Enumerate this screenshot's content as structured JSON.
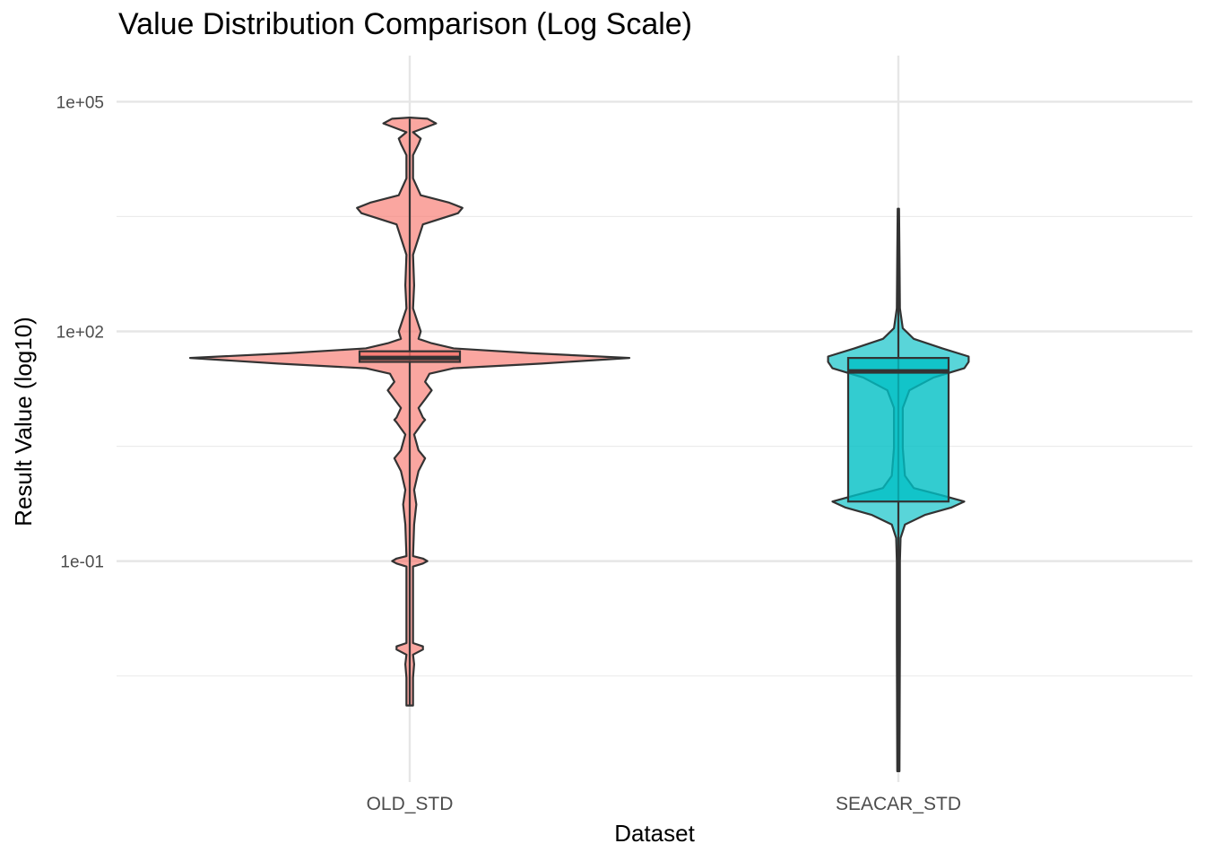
{
  "chart_data": {
    "type": "violin",
    "title": "Value Distribution Comparison (Log Scale)",
    "xlabel": "Dataset",
    "ylabel": "Result Value (log10)",
    "y_scale": "log10",
    "ylim": [
      0.00013,
      400000
    ],
    "y_ticks": [
      {
        "value": 0.1,
        "label": "1e-01"
      },
      {
        "value": 100,
        "label": "1e+02"
      },
      {
        "value": 100000,
        "label": "1e+05"
      }
    ],
    "y_minor_ticks": [
      0.0031623,
      3.1623,
      3162.3
    ],
    "grid": true,
    "legend": "none",
    "categories": [
      "OLD_STD",
      "SEACAR_STD"
    ],
    "series": [
      {
        "category": "OLD_STD",
        "color": "#F8766D",
        "min": 0.0013,
        "max": 60000,
        "box": {
          "q1": 40,
          "median": 45,
          "q3": 55
        },
        "violin_profile": [
          [
            0.0013,
            0.015
          ],
          [
            0.003,
            0.015
          ],
          [
            0.0045,
            0.02
          ],
          [
            0.006,
            0.015
          ],
          [
            0.007,
            0.06
          ],
          [
            0.0077,
            0.06
          ],
          [
            0.0085,
            0.015
          ],
          [
            0.085,
            0.015
          ],
          [
            0.093,
            0.06
          ],
          [
            0.1,
            0.08
          ],
          [
            0.108,
            0.06
          ],
          [
            0.116,
            0.015
          ],
          [
            0.3,
            0.02
          ],
          [
            0.55,
            0.03
          ],
          [
            0.85,
            0.02
          ],
          [
            1.5,
            0.04
          ],
          [
            2.2,
            0.07
          ],
          [
            2.8,
            0.04
          ],
          [
            4.5,
            0.02
          ],
          [
            6.5,
            0.06
          ],
          [
            7.0,
            0.07
          ],
          [
            7.5,
            0.06
          ],
          [
            10,
            0.04
          ],
          [
            13,
            0.07
          ],
          [
            17,
            0.1
          ],
          [
            22,
            0.07
          ],
          [
            28,
            0.09
          ],
          [
            33,
            0.2
          ],
          [
            38,
            0.6
          ],
          [
            45,
            1.0
          ],
          [
            52,
            0.55
          ],
          [
            60,
            0.2
          ],
          [
            70,
            0.1
          ],
          [
            80,
            0.04
          ],
          [
            100,
            0.05
          ],
          [
            200,
            0.015
          ],
          [
            400,
            0.02
          ],
          [
            1000,
            0.015
          ],
          [
            2500,
            0.06
          ],
          [
            3500,
            0.22
          ],
          [
            4100,
            0.24
          ],
          [
            4800,
            0.18
          ],
          [
            6000,
            0.05
          ],
          [
            10000,
            0.015
          ],
          [
            20000,
            0.015
          ],
          [
            28000,
            0.04
          ],
          [
            33000,
            0.05
          ],
          [
            40000,
            0.015
          ],
          [
            52000,
            0.12
          ],
          [
            60000,
            0.08
          ],
          [
            62000,
            0.001
          ]
        ]
      },
      {
        "category": "SEACAR_STD",
        "color": "#00BFC4",
        "min": 0.00018,
        "max": 4000,
        "box": {
          "q1": 0.6,
          "median": 30,
          "q3": 45
        },
        "violin_profile": [
          [
            0.00018,
            0.005
          ],
          [
            0.01,
            0.007
          ],
          [
            0.1,
            0.007
          ],
          [
            0.2,
            0.01
          ],
          [
            0.3,
            0.03
          ],
          [
            0.4,
            0.12
          ],
          [
            0.5,
            0.24
          ],
          [
            0.6,
            0.3
          ],
          [
            0.72,
            0.2
          ],
          [
            0.9,
            0.07
          ],
          [
            1.3,
            0.03
          ],
          [
            3,
            0.02
          ],
          [
            10,
            0.02
          ],
          [
            17,
            0.05
          ],
          [
            25,
            0.16
          ],
          [
            33,
            0.3
          ],
          [
            40,
            0.32
          ],
          [
            47,
            0.32
          ],
          [
            60,
            0.2
          ],
          [
            80,
            0.07
          ],
          [
            110,
            0.02
          ],
          [
            200,
            0.007
          ],
          [
            1000,
            0.005
          ],
          [
            4000,
            0.003
          ]
        ]
      }
    ]
  }
}
